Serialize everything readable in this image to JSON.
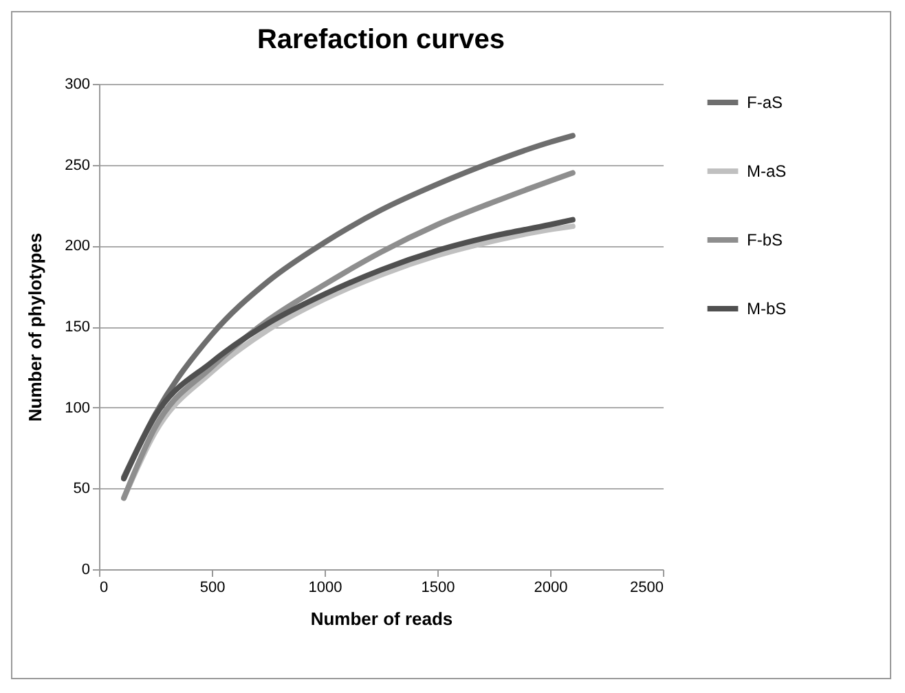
{
  "chart_data": {
    "type": "line",
    "title": "Rarefaction curves",
    "xlabel": "Number of reads",
    "ylabel": "Number of phylotypes",
    "x": [
      110,
      250,
      500,
      750,
      1000,
      1250,
      1500,
      1750,
      2000,
      2100
    ],
    "series": [
      {
        "name": "F-aS",
        "color": "#6e6e6e",
        "values": [
          57,
          96,
          145,
          178,
          202,
          222,
          238,
          252,
          264,
          268
        ]
      },
      {
        "name": "M-aS",
        "color": "#c0c0c0",
        "values": [
          44,
          85,
          122,
          148,
          167,
          182,
          194,
          203,
          210,
          212
        ]
      },
      {
        "name": "F-bS",
        "color": "#8e8e8e",
        "values": [
          44,
          88,
          125,
          154,
          176,
          196,
          213,
          227,
          240,
          245
        ]
      },
      {
        "name": "M-bS",
        "color": "#505050",
        "values": [
          56,
          95,
          128,
          152,
          170,
          185,
          197,
          206,
          213,
          216
        ]
      }
    ],
    "xlim": [
      0,
      2500
    ],
    "xticks": [
      0,
      500,
      1000,
      1500,
      2000,
      2500
    ],
    "ylim": [
      0,
      300
    ],
    "yticks": [
      0,
      50,
      100,
      150,
      200,
      250,
      300
    ],
    "grid": "y",
    "legend": "right",
    "marker": "none",
    "line_style": "solid"
  }
}
